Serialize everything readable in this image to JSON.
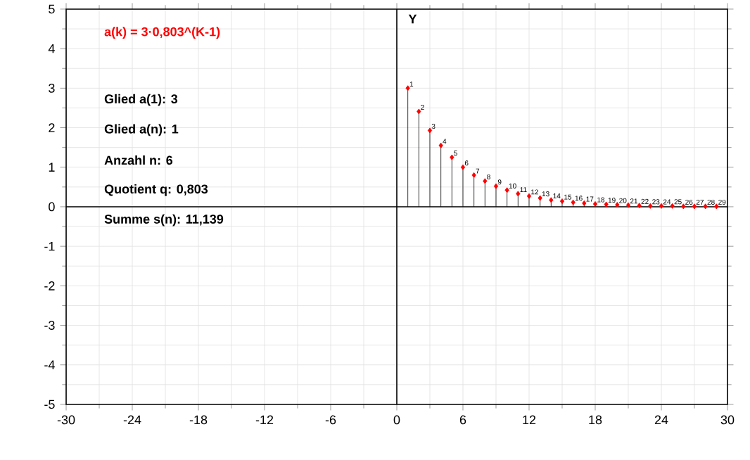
{
  "chart_data": {
    "type": "lollipop",
    "title": "a(k) = 3·0,803^(K-1)",
    "ylabel": "Y",
    "x": [
      1,
      2,
      3,
      4,
      5,
      6,
      7,
      8,
      9,
      10,
      11,
      12,
      13,
      14,
      15,
      16,
      17,
      18,
      19,
      20,
      21,
      22,
      23,
      24,
      25,
      26,
      27,
      28,
      29
    ],
    "values": [
      3,
      2.41,
      1.93,
      1.55,
      1.25,
      1.0,
      0.8,
      0.65,
      0.52,
      0.42,
      0.33,
      0.27,
      0.22,
      0.17,
      0.14,
      0.11,
      0.09,
      0.07,
      0.06,
      0.05,
      0.04,
      0.03,
      0.02,
      0.02,
      0.02,
      0.01,
      0.01,
      0.01,
      0.01
    ],
    "color": "#ff0000",
    "marker": "diamond",
    "grid": true,
    "xlim": [
      -30,
      30
    ],
    "ylim": [
      -5,
      5
    ],
    "xticks": [
      -30,
      -24,
      -18,
      -12,
      -6,
      0,
      6,
      12,
      18,
      24,
      30
    ],
    "yticks": [
      -5,
      -4,
      -3,
      -2,
      -1,
      0,
      1,
      2,
      3,
      4,
      5
    ],
    "annotations": [
      "Glied a(1): 3",
      "Glied a(n): 1",
      "Anzahl n: 6",
      "Quotient q: 0,803",
      "Summe s(n): 11,139",
      {
        "text": "1",
        "x": 1,
        "y": 3
      },
      {
        "text": "2",
        "x": 2,
        "y": 2.41
      },
      {
        "text": "3",
        "x": 3,
        "y": 1.93
      },
      {
        "text": "4",
        "x": 4,
        "y": 1.55
      },
      {
        "text": "5",
        "x": 5,
        "y": 1.25
      },
      {
        "text": "6",
        "x": 6,
        "y": 1.0
      },
      {
        "text": "7",
        "x": 7,
        "y": 0.8
      },
      {
        "text": "8",
        "x": 8,
        "y": 0.65
      },
      {
        "text": "9",
        "x": 9,
        "y": 0.52
      },
      {
        "text": "10",
        "x": 10,
        "y": 0.42
      },
      {
        "text": "11",
        "x": 11,
        "y": 0.33
      },
      {
        "text": "12",
        "x": 12,
        "y": 0.27
      },
      {
        "text": "13",
        "x": 13,
        "y": 0.22
      },
      {
        "text": "14",
        "x": 14,
        "y": 0.17
      },
      {
        "text": "15",
        "x": 15,
        "y": 0.14
      },
      {
        "text": "16",
        "x": 16,
        "y": 0.11
      },
      {
        "text": "17",
        "x": 17,
        "y": 0.09
      },
      {
        "text": "18",
        "x": 18,
        "y": 0.07
      },
      {
        "text": "19",
        "x": 19,
        "y": 0.06
      },
      {
        "text": "20",
        "x": 20,
        "y": 0.05
      },
      {
        "text": "21",
        "x": 21,
        "y": 0.04
      },
      {
        "text": "22",
        "x": 22,
        "y": 0.03
      },
      {
        "text": "23",
        "x": 23,
        "y": 0.02
      },
      {
        "text": "24",
        "x": 24,
        "y": 0.02
      },
      {
        "text": "25",
        "x": 25,
        "y": 0.02
      },
      {
        "text": "26",
        "x": 26,
        "y": 0.01
      },
      {
        "text": "27",
        "x": 27,
        "y": 0.01
      },
      {
        "text": "28",
        "x": 28,
        "y": 0.01
      },
      {
        "text": "29",
        "x": 29,
        "y": 0.01
      }
    ]
  }
}
